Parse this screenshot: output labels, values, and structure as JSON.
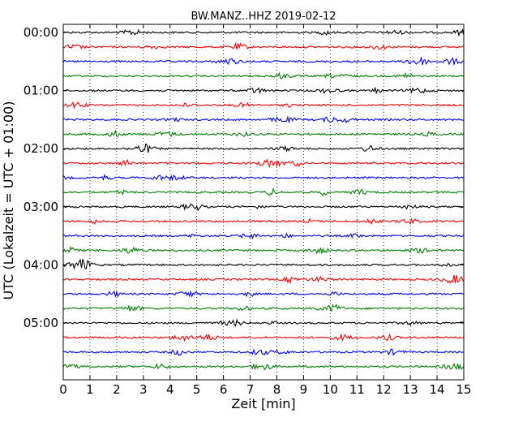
{
  "chart_data": {
    "type": "line",
    "title": "BW.MANZ..HHZ 2019-02-12",
    "xlabel": "Zeit  [min]",
    "ylabel": "UTC (Lokalzeit = UTC + 01:00)",
    "xlim": [
      0,
      15
    ],
    "x_ticks": [
      "0",
      "1",
      "2",
      "3",
      "4",
      "5",
      "6",
      "7",
      "8",
      "9",
      "10",
      "11",
      "12",
      "13",
      "14",
      "15"
    ],
    "y_tick_labels": [
      "00:00",
      "01:00",
      "02:00",
      "03:00",
      "04:00",
      "05:00"
    ],
    "trace_interval_minutes": 15,
    "trace_count": 24,
    "trace_colors": [
      "#000000",
      "#ff0000",
      "#0000ff",
      "#008000"
    ],
    "vertical_grid": "dotted",
    "series": [
      {
        "start": "00:00"
      },
      {
        "start": "00:15"
      },
      {
        "start": "00:30"
      },
      {
        "start": "00:45"
      },
      {
        "start": "01:00"
      },
      {
        "start": "01:15"
      },
      {
        "start": "01:30"
      },
      {
        "start": "01:45"
      },
      {
        "start": "02:00"
      },
      {
        "start": "02:15"
      },
      {
        "start": "02:30"
      },
      {
        "start": "02:45"
      },
      {
        "start": "03:00"
      },
      {
        "start": "03:15"
      },
      {
        "start": "03:30"
      },
      {
        "start": "03:45"
      },
      {
        "start": "04:00"
      },
      {
        "start": "04:15"
      },
      {
        "start": "04:30"
      },
      {
        "start": "04:45"
      },
      {
        "start": "05:00"
      },
      {
        "start": "05:15"
      },
      {
        "start": "05:30"
      },
      {
        "start": "05:45"
      }
    ]
  }
}
